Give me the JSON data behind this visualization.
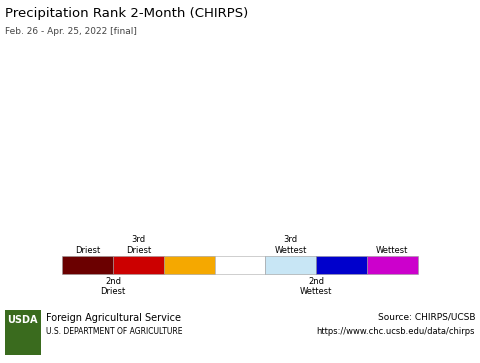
{
  "title": "Precipitation Rank 2-Month (CHIRPS)",
  "subtitle": "Feb. 26 - Apr. 25, 2022 [final]",
  "map_bg_color": "#aaddee",
  "land_bg_color": "#ffffff",
  "border_color": "#000000",
  "legend_colors": [
    "#6b0000",
    "#cc0000",
    "#f5a800",
    "#ffffff",
    "#c8e6f5",
    "#0000cc",
    "#cc00cc"
  ],
  "legend_labels_top": [
    "Driest",
    "3rd\nDriest",
    "3rd\nWettest",
    "Wettest"
  ],
  "legend_labels_bottom": [
    "2nd\nDriest",
    "2nd\nWettest"
  ],
  "footer_bg_color": "#d8d8d8",
  "footer_left_line1": "Foreign Agricultural Service",
  "footer_left_line2": "U.S. DEPARTMENT OF AGRICULTURE",
  "footer_right_line1": "Source: CHIRPS/UCSB",
  "footer_right_line2": "https://www.chc.ucsb.edu/data/chirps",
  "usda_green": "#3a6b1e",
  "fig_width": 4.8,
  "fig_height": 3.63,
  "dpi": 100,
  "map_extent": [
    -180,
    180,
    -60,
    85
  ]
}
